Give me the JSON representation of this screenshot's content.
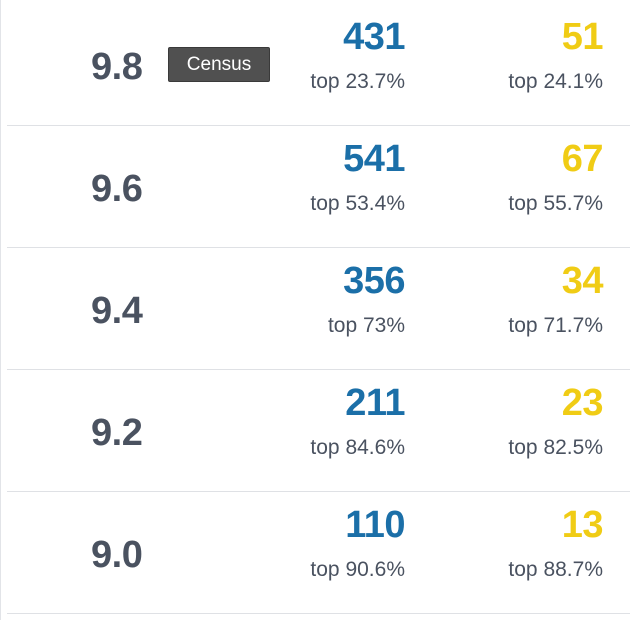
{
  "tooltip": {
    "label": "Census"
  },
  "rows": [
    {
      "grade": "9.8",
      "census_count": "431",
      "census_rank": "top 23.7%",
      "pop_count": "51",
      "pop_rank": "top 24.1%"
    },
    {
      "grade": "9.6",
      "census_count": "541",
      "census_rank": "top 53.4%",
      "pop_count": "67",
      "pop_rank": "top 55.7%"
    },
    {
      "grade": "9.4",
      "census_count": "356",
      "census_rank": "top 73%",
      "pop_count": "34",
      "pop_rank": "top 71.7%"
    },
    {
      "grade": "9.2",
      "census_count": "211",
      "census_rank": "top 84.6%",
      "pop_count": "23",
      "pop_rank": "top 82.5%"
    },
    {
      "grade": "9.0",
      "census_count": "110",
      "census_rank": "top 90.6%",
      "pop_count": "13",
      "pop_rank": "top 88.7%"
    }
  ],
  "colors": {
    "census": "#1b6fa8",
    "population": "#f0cc15",
    "grade_text": "#4a5260",
    "tooltip_bg": "#505050"
  }
}
